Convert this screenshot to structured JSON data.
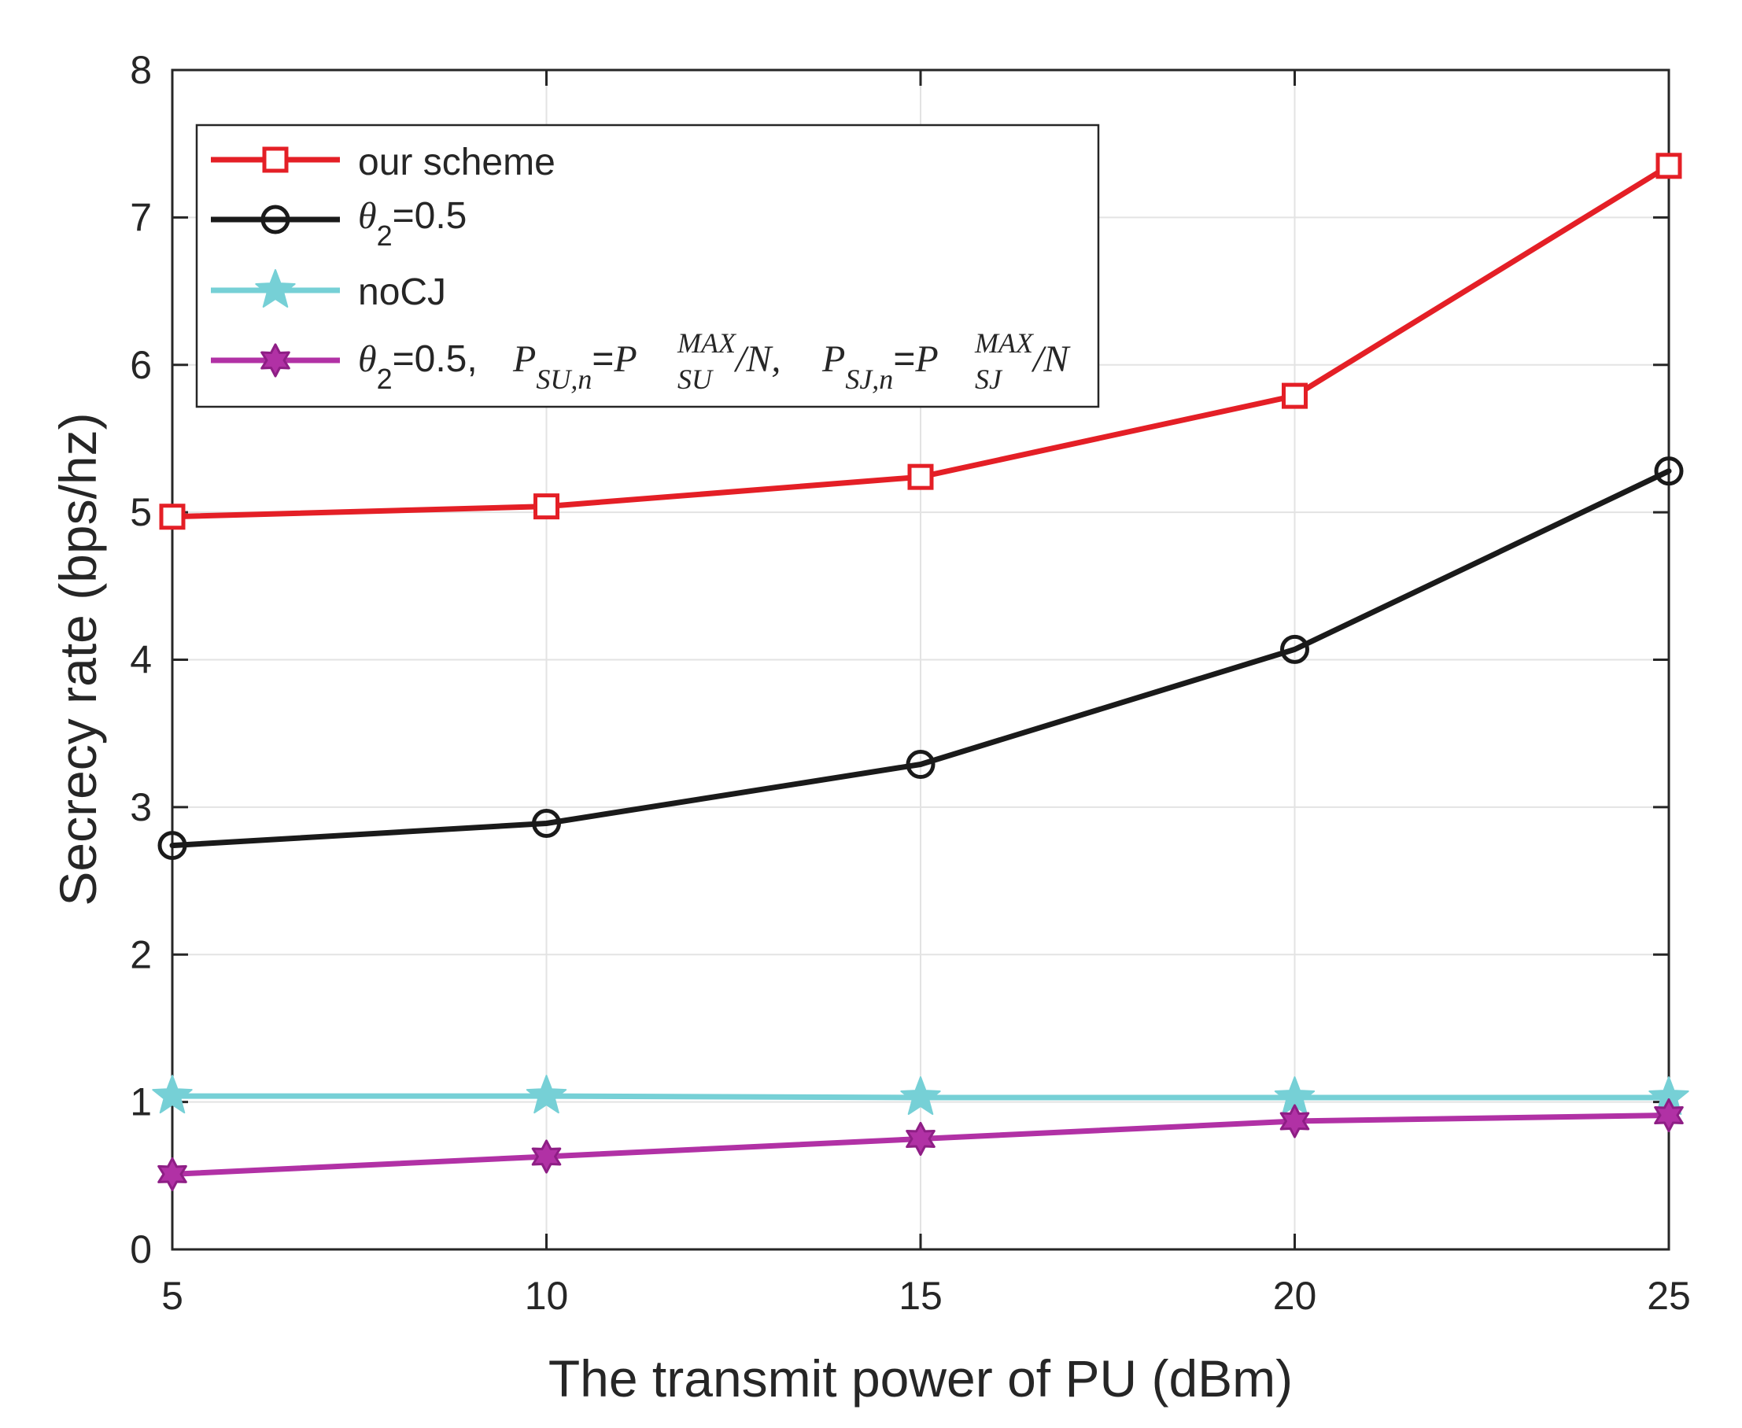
{
  "chart_data": {
    "type": "line",
    "title": "",
    "xlabel": "The transmit power of PU (dBm)",
    "ylabel": "Secrecy rate (bps/hz)",
    "xlim": [
      5,
      25
    ],
    "ylim": [
      0,
      8
    ],
    "grid": true,
    "legend_position": "top-left",
    "x": [
      5,
      10,
      15,
      20,
      25
    ],
    "x_ticks": [
      "5",
      "10",
      "15",
      "20",
      "25"
    ],
    "y_ticks": [
      "0",
      "1",
      "2",
      "3",
      "4",
      "5",
      "6",
      "7",
      "8"
    ],
    "series": [
      {
        "name": "our scheme",
        "marker": "square",
        "color": "#E41F26",
        "values": [
          4.97,
          5.04,
          5.24,
          5.79,
          7.35
        ]
      },
      {
        "name": "θ2=0.5",
        "legend_parts": {
          "symbol": "θ",
          "sub": "2",
          "rest": "=0.5"
        },
        "marker": "circle",
        "color": "#1A1A1A",
        "values": [
          2.74,
          2.89,
          3.29,
          4.07,
          5.28
        ]
      },
      {
        "name": "noCJ",
        "marker": "star",
        "color": "#76D0D6",
        "values": [
          1.04,
          1.04,
          1.03,
          1.03,
          1.03
        ]
      },
      {
        "name": "θ2=0.5,  PSU,n=PSU^MAX/N,  PSJ,n=PSJ^MAX/N",
        "legend_parts": {
          "symbol": "θ",
          "sub": "2",
          "rest": "=0.5,",
          "p": "P",
          "sub_su_n": "SU,n",
          "eq": "=",
          "sup_max": "MAX",
          "sub_su": "SU",
          "over_n": "/N,",
          "sub_sj_n": "SJ,n",
          "sub_sj": "SJ",
          "over_n_end": "/N"
        },
        "marker": "hexagram",
        "color": "#B131A5",
        "values": [
          0.51,
          0.63,
          0.75,
          0.87,
          0.91
        ]
      }
    ]
  }
}
